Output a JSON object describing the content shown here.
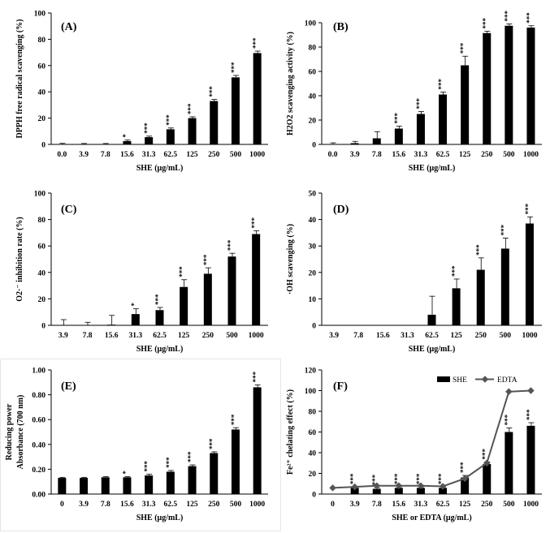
{
  "chart_data": [
    {
      "type": "bar",
      "panel": "(A)",
      "ylabel": "DPPH free radical scavenging (%)",
      "xlabel": "SHE (μg/mL)",
      "ylim": [
        0,
        100
      ],
      "yticks": [
        "0",
        "20",
        "40",
        "60",
        "80",
        "100"
      ],
      "categories": [
        "0.0",
        "3.9",
        "7.8",
        "15.6",
        "31.3",
        "62.5",
        "125",
        "250",
        "500",
        "1000"
      ],
      "values": [
        0.3,
        0.2,
        0.3,
        2.5,
        5.5,
        11.5,
        20,
        33,
        51,
        69.5
      ],
      "errors": [
        0.5,
        0.5,
        0.4,
        0.8,
        0.8,
        1.0,
        1.0,
        1.2,
        1.5,
        1.5
      ],
      "significance": [
        "",
        "",
        "",
        "*",
        "***",
        "***",
        "***",
        "***",
        "***",
        "***"
      ]
    },
    {
      "type": "bar",
      "panel": "(B)",
      "ylabel": "H2O2 scavenging activity (%)",
      "xlabel": "SHE (μg/mL)",
      "ylim": [
        0,
        100
      ],
      "yticks": [
        "0",
        "20",
        "40",
        "60",
        "80",
        "100"
      ],
      "categories": [
        "0.0",
        "3.9",
        "7.8",
        "15.6",
        "31.3",
        "62.5",
        "125",
        "250",
        "500",
        "1000"
      ],
      "values": [
        0.3,
        1.0,
        5.0,
        13.0,
        25.0,
        41.0,
        65.0,
        91.5,
        97.5,
        96.0
      ],
      "errors": [
        1.0,
        1.5,
        5.5,
        2.0,
        2.0,
        2.0,
        7.5,
        1.5,
        1.5,
        1.5
      ],
      "significance": [
        "",
        "",
        "",
        "***",
        "***",
        "***",
        "***",
        "***",
        "***",
        "***"
      ]
    },
    {
      "type": "bar",
      "panel": "(C)",
      "ylabel": "O2·⁻ inhibition rate (%)",
      "xlabel": "SHE (μg/mL)",
      "ylim": [
        0,
        100
      ],
      "yticks": [
        "0",
        "20",
        "40",
        "60",
        "80",
        "100"
      ],
      "categories": [
        "3.9",
        "7.8",
        "15.6",
        "31.3",
        "62.5",
        "125",
        "250",
        "500",
        "1000"
      ],
      "values": [
        0.3,
        0.3,
        0.5,
        8.5,
        11.5,
        29,
        39,
        52,
        69
      ],
      "errors": [
        4.0,
        2.0,
        7.0,
        4.0,
        2.0,
        5.5,
        4.5,
        2.5,
        2.5
      ],
      "significance": [
        "",
        "",
        "",
        "*",
        "***",
        "***",
        "***",
        "***",
        "***"
      ]
    },
    {
      "type": "bar",
      "panel": "(D)",
      "ylabel": "·OH scavenging (%)",
      "xlabel": "SHE (μg/mL)",
      "ylim": [
        0,
        50
      ],
      "yticks": [
        "0",
        "10",
        "20",
        "30",
        "40",
        "50"
      ],
      "categories": [
        "3.9",
        "7.8",
        "15.6",
        "31.3",
        "62.5",
        "125",
        "250",
        "500",
        "1000"
      ],
      "values": [
        0,
        0,
        0,
        0,
        4,
        14,
        21,
        29,
        38.5
      ],
      "errors": [
        0,
        0,
        0,
        0,
        7,
        3.5,
        4.5,
        4,
        2.5
      ],
      "significance": [
        "",
        "",
        "",
        "",
        "",
        "***",
        "***",
        "***",
        "***"
      ]
    },
    {
      "type": "bar",
      "panel": "(E)",
      "ylabel": "Reducing power Absorbance (700 nm)",
      "ylabel_lines": [
        "Reducing power",
        "Absorbance (700 nm)"
      ],
      "xlabel": "SHE (μg/mL)",
      "ylim": [
        0,
        1.0
      ],
      "yticks": [
        "0.00",
        "0.20",
        "0.40",
        "0.60",
        "0.80",
        "1.00"
      ],
      "categories": [
        "0",
        "3.9",
        "7.8",
        "15.6",
        "31.3",
        "62.5",
        "125",
        "250",
        "500",
        "1000"
      ],
      "values": [
        0.13,
        0.13,
        0.135,
        0.135,
        0.15,
        0.18,
        0.225,
        0.33,
        0.52,
        0.86
      ],
      "errors": [
        0.005,
        0.005,
        0.005,
        0.005,
        0.01,
        0.01,
        0.01,
        0.01,
        0.015,
        0.02
      ],
      "significance": [
        "",
        "",
        "",
        "*",
        "***",
        "***",
        "***",
        "***",
        "***",
        "***"
      ]
    },
    {
      "type": "bar+line",
      "panel": "(F)",
      "ylabel": "Fe²⁺ chelating effect (%)",
      "xlabel": "SHE or EDTA (μg/mL)",
      "ylim": [
        0,
        120
      ],
      "yticks": [
        "0",
        "20",
        "40",
        "60",
        "80",
        "100",
        "120"
      ],
      "categories": [
        "0",
        "3.9",
        "7.8",
        "15.6",
        "31.3",
        "62.5",
        "125",
        "250",
        "500",
        "1000"
      ],
      "legend": [
        "SHE",
        "EDTA"
      ],
      "series": [
        {
          "name": "SHE",
          "type": "bar",
          "values": [
            0,
            6,
            5,
            6,
            6,
            6,
            16,
            29,
            60,
            66
          ],
          "errors": [
            0,
            1,
            1,
            1,
            1,
            1,
            2,
            2,
            4,
            3
          ],
          "significance": [
            "",
            "***",
            "***",
            "***",
            "***",
            "***",
            "***",
            "***",
            "***",
            "***"
          ]
        },
        {
          "name": "EDTA",
          "type": "line",
          "values": [
            6,
            7,
            8,
            8,
            8,
            7.5,
            15,
            30,
            99,
            100
          ]
        }
      ]
    }
  ]
}
